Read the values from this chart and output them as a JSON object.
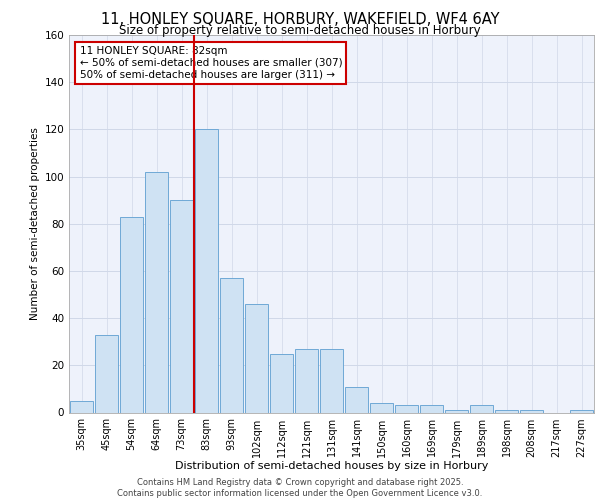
{
  "title_line1": "11, HONLEY SQUARE, HORBURY, WAKEFIELD, WF4 6AY",
  "title_line2": "Size of property relative to semi-detached houses in Horbury",
  "xlabel": "Distribution of semi-detached houses by size in Horbury",
  "ylabel": "Number of semi-detached properties",
  "categories": [
    "35sqm",
    "45sqm",
    "54sqm",
    "64sqm",
    "73sqm",
    "83sqm",
    "93sqm",
    "102sqm",
    "112sqm",
    "121sqm",
    "131sqm",
    "141sqm",
    "150sqm",
    "160sqm",
    "169sqm",
    "179sqm",
    "189sqm",
    "198sqm",
    "208sqm",
    "217sqm",
    "227sqm"
  ],
  "values": [
    5,
    33,
    83,
    102,
    90,
    120,
    57,
    46,
    25,
    27,
    27,
    11,
    4,
    3,
    3,
    1,
    3,
    1,
    1,
    0,
    1
  ],
  "bar_color": "#cfe2f3",
  "bar_edge_color": "#6fa8d6",
  "vline_color": "#cc0000",
  "vline_x_index": 5,
  "annotation_title": "11 HONLEY SQUARE: 82sqm",
  "annotation_line2": "← 50% of semi-detached houses are smaller (307)",
  "annotation_line3": "50% of semi-detached houses are larger (311) →",
  "annotation_box_color": "#cc0000",
  "ylim": [
    0,
    160
  ],
  "yticks": [
    0,
    20,
    40,
    60,
    80,
    100,
    120,
    140,
    160
  ],
  "grid_color": "#d0d8e8",
  "bg_color": "#eef2fb",
  "footer_line1": "Contains HM Land Registry data © Crown copyright and database right 2025.",
  "footer_line2": "Contains public sector information licensed under the Open Government Licence v3.0."
}
